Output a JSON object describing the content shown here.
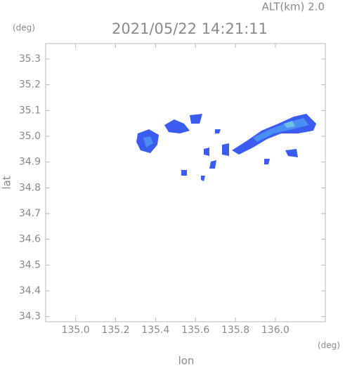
{
  "chart_data": {
    "type": "map",
    "title": "2021/05/22 14:21:11",
    "altitude_label": "ALT(km) 2.0",
    "y_unit": "(deg)",
    "x_unit": "(deg)",
    "x_label": "lon",
    "y_label": "lat",
    "xlim": [
      134.85,
      136.25
    ],
    "ylim": [
      34.28,
      35.36
    ],
    "xticks": [
      {
        "value": 135,
        "label": "135.0"
      },
      135.2,
      135.4,
      135.6,
      135.8,
      {
        "value": 136,
        "label": "136.0"
      }
    ],
    "yticks": [
      34.3,
      34.4,
      34.5,
      34.6,
      34.7,
      34.8,
      34.9,
      {
        "value": 35,
        "label": "35.0"
      },
      35.1,
      35.2,
      35.3
    ]
  }
}
